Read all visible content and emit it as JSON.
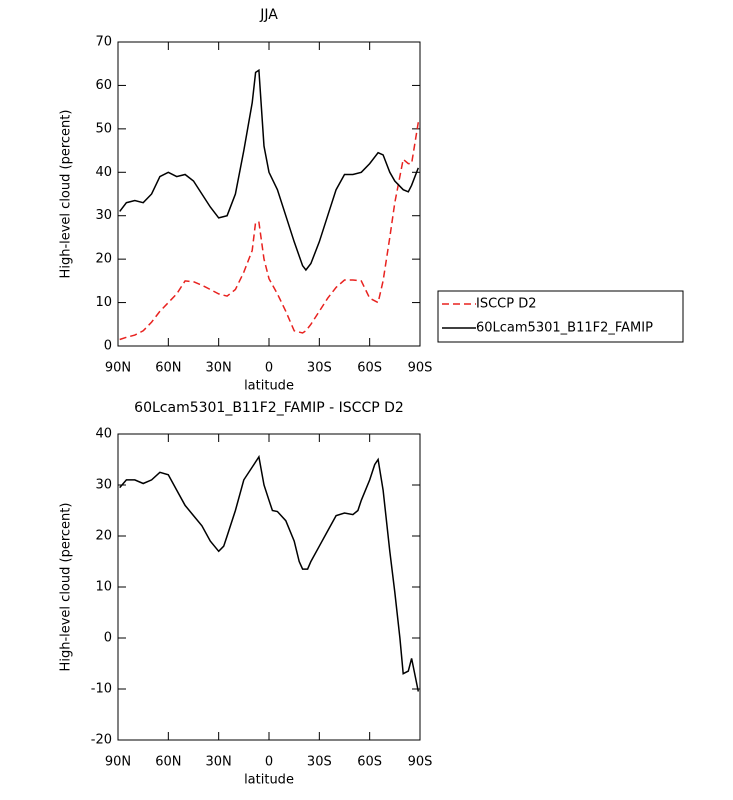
{
  "chart_data": [
    {
      "type": "line",
      "title": "JJA",
      "xlabel": "latitude",
      "ylabel": "High-level cloud (percent)",
      "x": [
        89,
        85,
        80,
        75,
        70,
        65,
        60,
        55,
        50,
        45,
        40,
        35,
        30,
        25,
        20,
        15,
        10,
        8,
        6,
        3,
        0,
        -5,
        -10,
        -15,
        -20,
        -22,
        -25,
        -30,
        -35,
        -40,
        -45,
        -50,
        -55,
        -60,
        -65,
        -68,
        -72,
        -75,
        -80,
        -83,
        -85,
        -89
      ],
      "series": [
        {
          "name": "ISCCP D2",
          "color": "#e8221f",
          "style": "dashed",
          "values": [
            1.5,
            2,
            2.5,
            3.5,
            5.5,
            8,
            10,
            12,
            15,
            14.8,
            14,
            13,
            12,
            11.5,
            13,
            17,
            22,
            28.5,
            28.5,
            20,
            15.5,
            12,
            8,
            3.5,
            3,
            3.5,
            5,
            8,
            11,
            13.5,
            15.2,
            15.2,
            15,
            11,
            10,
            15,
            25,
            33,
            43,
            42,
            42,
            51.5
          ]
        },
        {
          "name": "60Lcam5301_B11F2_FAMIP",
          "color": "#000000",
          "style": "solid",
          "values": [
            31,
            33,
            33.5,
            33,
            35,
            39,
            40,
            39,
            39.5,
            38,
            35,
            32,
            29.5,
            30,
            35,
            45,
            56,
            63,
            63.5,
            46,
            40,
            36,
            30,
            24,
            18.5,
            17.5,
            19,
            24,
            30,
            36,
            39.5,
            39.5,
            40,
            42,
            44.5,
            44,
            40,
            38,
            36,
            35.5,
            37,
            41
          ]
        }
      ],
      "xlim": [
        90,
        -90
      ],
      "xticks": [
        {
          "value": 90,
          "label": "90N"
        },
        {
          "value": 60,
          "label": "60N"
        },
        {
          "value": 30,
          "label": "30N"
        },
        0,
        {
          "value": -30,
          "label": "30S"
        },
        {
          "value": -60,
          "label": "60S"
        },
        {
          "value": -90,
          "label": "90S"
        }
      ],
      "ylim": [
        0,
        70
      ],
      "yticks": [
        0,
        10,
        20,
        30,
        40,
        50,
        60,
        70
      ],
      "legend": "right"
    },
    {
      "type": "line",
      "title": "60Lcam5301_B11F2_FAMIP - ISCCP D2",
      "xlabel": "latitude",
      "ylabel": "High-level cloud (percent)",
      "x": [
        89,
        85,
        80,
        75,
        70,
        65,
        60,
        55,
        50,
        45,
        40,
        35,
        30,
        27,
        25,
        20,
        15,
        10,
        6,
        3,
        0,
        -2,
        -5,
        -10,
        -15,
        -18,
        -20,
        -23,
        -25,
        -30,
        -35,
        -40,
        -45,
        -50,
        -53,
        -55,
        -60,
        -63,
        -65,
        -68,
        -72,
        -75,
        -78,
        -80,
        -83,
        -85,
        -89
      ],
      "series": [
        {
          "color": "#000000",
          "style": "solid",
          "values": [
            29.5,
            31,
            31,
            30.3,
            31,
            32.5,
            32,
            29,
            26,
            24,
            22,
            19,
            17,
            18,
            20,
            25,
            31,
            33.5,
            35.5,
            30,
            27,
            25,
            24.8,
            23,
            19,
            15,
            13.5,
            13.5,
            15,
            18,
            21,
            24,
            24.5,
            24.2,
            25,
            27,
            31,
            34,
            35,
            29,
            17,
            9,
            0,
            -7,
            -6.5,
            -4,
            -10.5
          ]
        }
      ],
      "xlim": [
        90,
        -90
      ],
      "xticks": [
        {
          "value": 90,
          "label": "90N"
        },
        {
          "value": 60,
          "label": "60N"
        },
        {
          "value": 30,
          "label": "30N"
        },
        0,
        {
          "value": -30,
          "label": "30S"
        },
        {
          "value": -60,
          "label": "60S"
        },
        {
          "value": -90,
          "label": "90S"
        }
      ],
      "ylim": [
        -20,
        40
      ],
      "yticks": [
        -20,
        -10,
        0,
        10,
        20,
        30,
        40
      ]
    }
  ]
}
